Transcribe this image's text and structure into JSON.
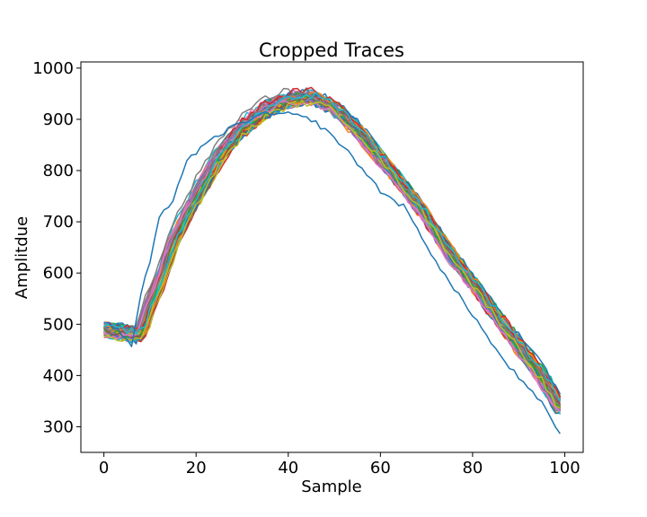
{
  "chart_data": {
    "type": "line",
    "title": "Cropped Traces",
    "xlabel": "Sample",
    "ylabel": "Amplitdue",
    "xlim": [
      -5,
      104
    ],
    "ylim": [
      250,
      1012
    ],
    "xticks": [
      0,
      20,
      40,
      60,
      80,
      100
    ],
    "yticks": [
      300,
      400,
      500,
      600,
      700,
      800,
      900,
      1000
    ],
    "grid": false,
    "legend": "none",
    "x_range": [
      0,
      99
    ],
    "palette": [
      "#1f77b4",
      "#ff7f0e",
      "#2ca02c",
      "#d62728",
      "#9467bd",
      "#8c564b",
      "#e377c2",
      "#7f7f7f",
      "#bcbd22",
      "#17becf"
    ],
    "num_series": 60,
    "series_count_note": "",
    "mean_trace": [
      {
        "x": 0,
        "y": 490
      },
      {
        "x": 8,
        "y": 480
      },
      {
        "x": 10,
        "y": 540
      },
      {
        "x": 12,
        "y": 580
      },
      {
        "x": 15,
        "y": 660
      },
      {
        "x": 18,
        "y": 715
      },
      {
        "x": 20,
        "y": 750
      },
      {
        "x": 25,
        "y": 830
      },
      {
        "x": 30,
        "y": 885
      },
      {
        "x": 35,
        "y": 920
      },
      {
        "x": 40,
        "y": 940
      },
      {
        "x": 45,
        "y": 945
      },
      {
        "x": 50,
        "y": 925
      },
      {
        "x": 55,
        "y": 880
      },
      {
        "x": 60,
        "y": 825
      },
      {
        "x": 65,
        "y": 770
      },
      {
        "x": 70,
        "y": 710
      },
      {
        "x": 75,
        "y": 640
      },
      {
        "x": 80,
        "y": 580
      },
      {
        "x": 85,
        "y": 520
      },
      {
        "x": 90,
        "y": 460
      },
      {
        "x": 95,
        "y": 400
      },
      {
        "x": 99,
        "y": 340
      }
    ],
    "outlier_trace": [
      {
        "x": 0,
        "y": 505
      },
      {
        "x": 3,
        "y": 490
      },
      {
        "x": 6,
        "y": 455
      },
      {
        "x": 8,
        "y": 560
      },
      {
        "x": 10,
        "y": 620
      },
      {
        "x": 12,
        "y": 705
      },
      {
        "x": 15,
        "y": 745
      },
      {
        "x": 18,
        "y": 820
      },
      {
        "x": 20,
        "y": 835
      },
      {
        "x": 25,
        "y": 870
      },
      {
        "x": 30,
        "y": 895
      },
      {
        "x": 35,
        "y": 910
      },
      {
        "x": 40,
        "y": 910
      },
      {
        "x": 45,
        "y": 900
      },
      {
        "x": 50,
        "y": 865
      },
      {
        "x": 55,
        "y": 815
      },
      {
        "x": 60,
        "y": 760
      },
      {
        "x": 65,
        "y": 730
      },
      {
        "x": 70,
        "y": 655
      },
      {
        "x": 75,
        "y": 580
      },
      {
        "x": 80,
        "y": 520
      },
      {
        "x": 85,
        "y": 450
      },
      {
        "x": 90,
        "y": 395
      },
      {
        "x": 95,
        "y": 345
      },
      {
        "x": 99,
        "y": 288
      }
    ]
  }
}
